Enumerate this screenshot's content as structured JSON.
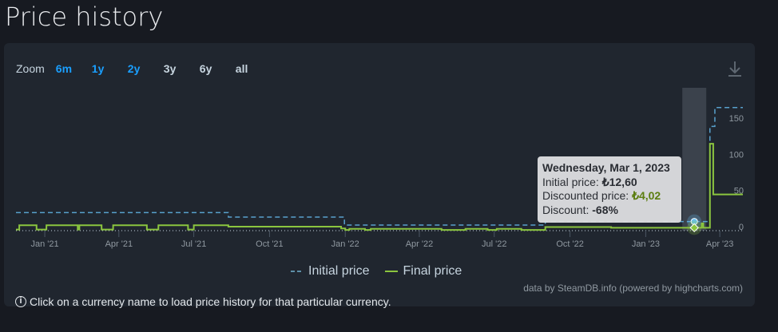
{
  "title": "Price history",
  "zoom": {
    "label": "Zoom",
    "options": [
      "6m",
      "1y",
      "2y",
      "3y",
      "6y",
      "all"
    ],
    "active": [
      "6m",
      "1y",
      "2y"
    ]
  },
  "download_icon": "download-icon",
  "colors": {
    "initial": "#67c1f5",
    "final": "#8bc53f",
    "active_zoom": "#1a9fff"
  },
  "tooltip": {
    "date": "Wednesday, Mar 1, 2023",
    "initial_label": "Initial price:",
    "initial_value": "₺12,60",
    "discounted_label": "Discounted price:",
    "discounted_value": "₺4,02",
    "discount_label": "Discount:",
    "discount_value": "-68%"
  },
  "legend": {
    "initial": "Initial price",
    "final": "Final price"
  },
  "credit": "data by SteamDB.info (powered by highcharts.com)",
  "note": "Click on a currency name to load price history for that particular currency.",
  "chart_data": {
    "type": "line",
    "step": true,
    "xlim": [
      "2020-11-27",
      "2023-04-29"
    ],
    "ylim": [
      0,
      165
    ],
    "x_ticks": [
      "Jan '21",
      "Apr '21",
      "Jul '21",
      "Oct '21",
      "Jan '22",
      "Apr '22",
      "Jul '22",
      "Oct '22",
      "Jan '23",
      "Apr '23"
    ],
    "y_ticks": [
      0,
      50,
      100,
      150
    ],
    "series": [
      {
        "name": "Initial price",
        "style": "dashed",
        "points": [
          [
            "2020-11-27",
            25
          ],
          [
            "2021-08-12",
            18.7
          ],
          [
            "2021-12-31",
            7.7
          ],
          [
            "2022-09-01",
            12.6
          ],
          [
            "2023-03-20",
            144
          ],
          [
            "2023-03-26",
            170
          ],
          [
            "2023-04-29",
            170
          ]
        ]
      },
      {
        "name": "Final price",
        "style": "solid",
        "points": [
          [
            "2020-11-27",
            1.5
          ],
          [
            "2020-12-01",
            7.5
          ],
          [
            "2020-12-22",
            1.5
          ],
          [
            "2021-01-03",
            7.5
          ],
          [
            "2021-02-10",
            1.5
          ],
          [
            "2021-02-12",
            7.5
          ],
          [
            "2021-03-11",
            1.5
          ],
          [
            "2021-03-25",
            7.5
          ],
          [
            "2021-05-05",
            1.5
          ],
          [
            "2021-05-19",
            7.5
          ],
          [
            "2021-06-24",
            1.5
          ],
          [
            "2021-07-01",
            7.5
          ],
          [
            "2021-08-12",
            5.5
          ],
          [
            "2021-12-27",
            3
          ],
          [
            "2022-01-01",
            1
          ],
          [
            "2022-01-06",
            2.5
          ],
          [
            "2022-01-25",
            1
          ],
          [
            "2022-02-01",
            2.5
          ],
          [
            "2022-04-28",
            1
          ],
          [
            "2022-05-27",
            2.5
          ],
          [
            "2022-06-23",
            1
          ],
          [
            "2022-07-04",
            2.5
          ],
          [
            "2022-08-03",
            1
          ],
          [
            "2022-09-01",
            5
          ],
          [
            "2022-11-20",
            4.02
          ],
          [
            "2023-03-01",
            4.02
          ],
          [
            "2023-03-10",
            10
          ],
          [
            "2023-03-12",
            4.02
          ],
          [
            "2023-03-20",
            120
          ],
          [
            "2023-03-24",
            50
          ],
          [
            "2023-03-26",
            50
          ],
          [
            "2023-04-29",
            50
          ]
        ]
      }
    ],
    "highlight": {
      "date": "2023-03-01",
      "initial": 12.6,
      "final": 4.02
    }
  }
}
